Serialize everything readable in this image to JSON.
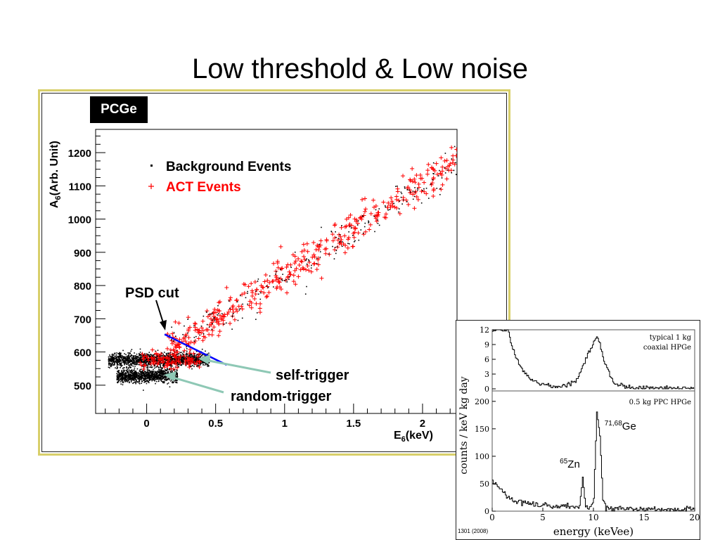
{
  "slide": {
    "title": "Low threshold & Low noise"
  },
  "reference": "1301 (2008)",
  "chart_data": [
    {
      "type": "scatter",
      "panel_label": "PCGe",
      "xlabel": "E6(keV)",
      "ylabel": "A6(Arb. Unit)",
      "xlim": [
        -0.37,
        2.25
      ],
      "ylim": [
        415,
        1270
      ],
      "x_ticks": [
        "0",
        "0.5",
        "1",
        "1.5",
        "2"
      ],
      "y_ticks": [
        "500",
        "600",
        "700",
        "800",
        "900",
        "1000",
        "1100",
        "1200"
      ],
      "x_tick_values": [
        0,
        0.5,
        1,
        1.5,
        2
      ],
      "y_tick_values": [
        500,
        600,
        700,
        800,
        900,
        1000,
        1100,
        1200
      ],
      "legend": [
        {
          "label": "Background Events",
          "color": "#000000"
        },
        {
          "label": "ACT Events",
          "color": "#ff0000"
        }
      ],
      "clusters": [
        {
          "name": "self-trigger cluster",
          "x_range": [
            -0.28,
            0.45
          ],
          "y_center": 578,
          "y_spread": 14
        },
        {
          "name": "random-trigger cluster",
          "x_range": [
            -0.22,
            0.22
          ],
          "y_center": 530,
          "y_spread": 14
        }
      ],
      "act_band": {
        "x_range": [
          0.15,
          2.25
        ],
        "y_at_start": 600,
        "slope_per_keV": 272,
        "spread": 28
      },
      "psd_cut": {
        "x": [
          0.13,
          0.58
        ],
        "y": [
          653,
          561
        ],
        "color": "#0000ff"
      },
      "annotations": [
        {
          "text": "PSD cut"
        },
        {
          "text": "self-trigger"
        },
        {
          "text": "random-trigger"
        }
      ]
    },
    {
      "type": "line",
      "xlabel": "energy (keVee)",
      "ylabel": "counts / keV kg day",
      "xlim": [
        0,
        20
      ],
      "x_ticks": [
        "0",
        "5",
        "10",
        "15",
        "20"
      ],
      "panels": [
        {
          "label": "typical 1 kg",
          "label2": "coaxial HPGe",
          "ylim": [
            0,
            12
          ],
          "y_ticks": [
            "0",
            "3",
            "6",
            "9",
            "12"
          ],
          "x": [
            0,
            0.5,
            1,
            1.5,
            2,
            3,
            4,
            5,
            6,
            7,
            8,
            8.5,
            9,
            9.5,
            10,
            10.3,
            10.6,
            11,
            11.5,
            12,
            13,
            14,
            15,
            16,
            17,
            18,
            19,
            20
          ],
          "y": [
            12,
            12,
            12,
            12,
            8,
            3.5,
            1.5,
            0.8,
            0.5,
            0.6,
            1.2,
            2.5,
            5,
            7.5,
            9.5,
            10.5,
            9,
            6,
            3,
            1.2,
            0.4,
            0.2,
            0.15,
            0.1,
            0.1,
            0.1,
            0.1,
            0.1
          ]
        },
        {
          "label": "0.5 kg PPC HPGe",
          "ylim": [
            0,
            210
          ],
          "y_ticks": [
            "0",
            "50",
            "100",
            "150",
            "200"
          ],
          "x": [
            0,
            0.5,
            1,
            1.5,
            2,
            3,
            4,
            5,
            6,
            7,
            8,
            8.6,
            8.9,
            9.2,
            9.5,
            10,
            10.3,
            10.6,
            10.9,
            11.2,
            12,
            13,
            14,
            15,
            16,
            17,
            18,
            19,
            20
          ],
          "y": [
            55,
            45,
            35,
            25,
            20,
            15,
            12,
            10,
            9,
            8,
            7,
            10,
            60,
            10,
            6,
            20,
            180,
            140,
            20,
            6,
            5,
            4,
            4,
            3,
            3,
            3,
            3,
            3,
            3
          ],
          "peaks": [
            {
              "label": "65Zn",
              "x": 8.9
            },
            {
              "label": "71,68Ge",
              "x": 10.4
            }
          ]
        }
      ]
    }
  ]
}
